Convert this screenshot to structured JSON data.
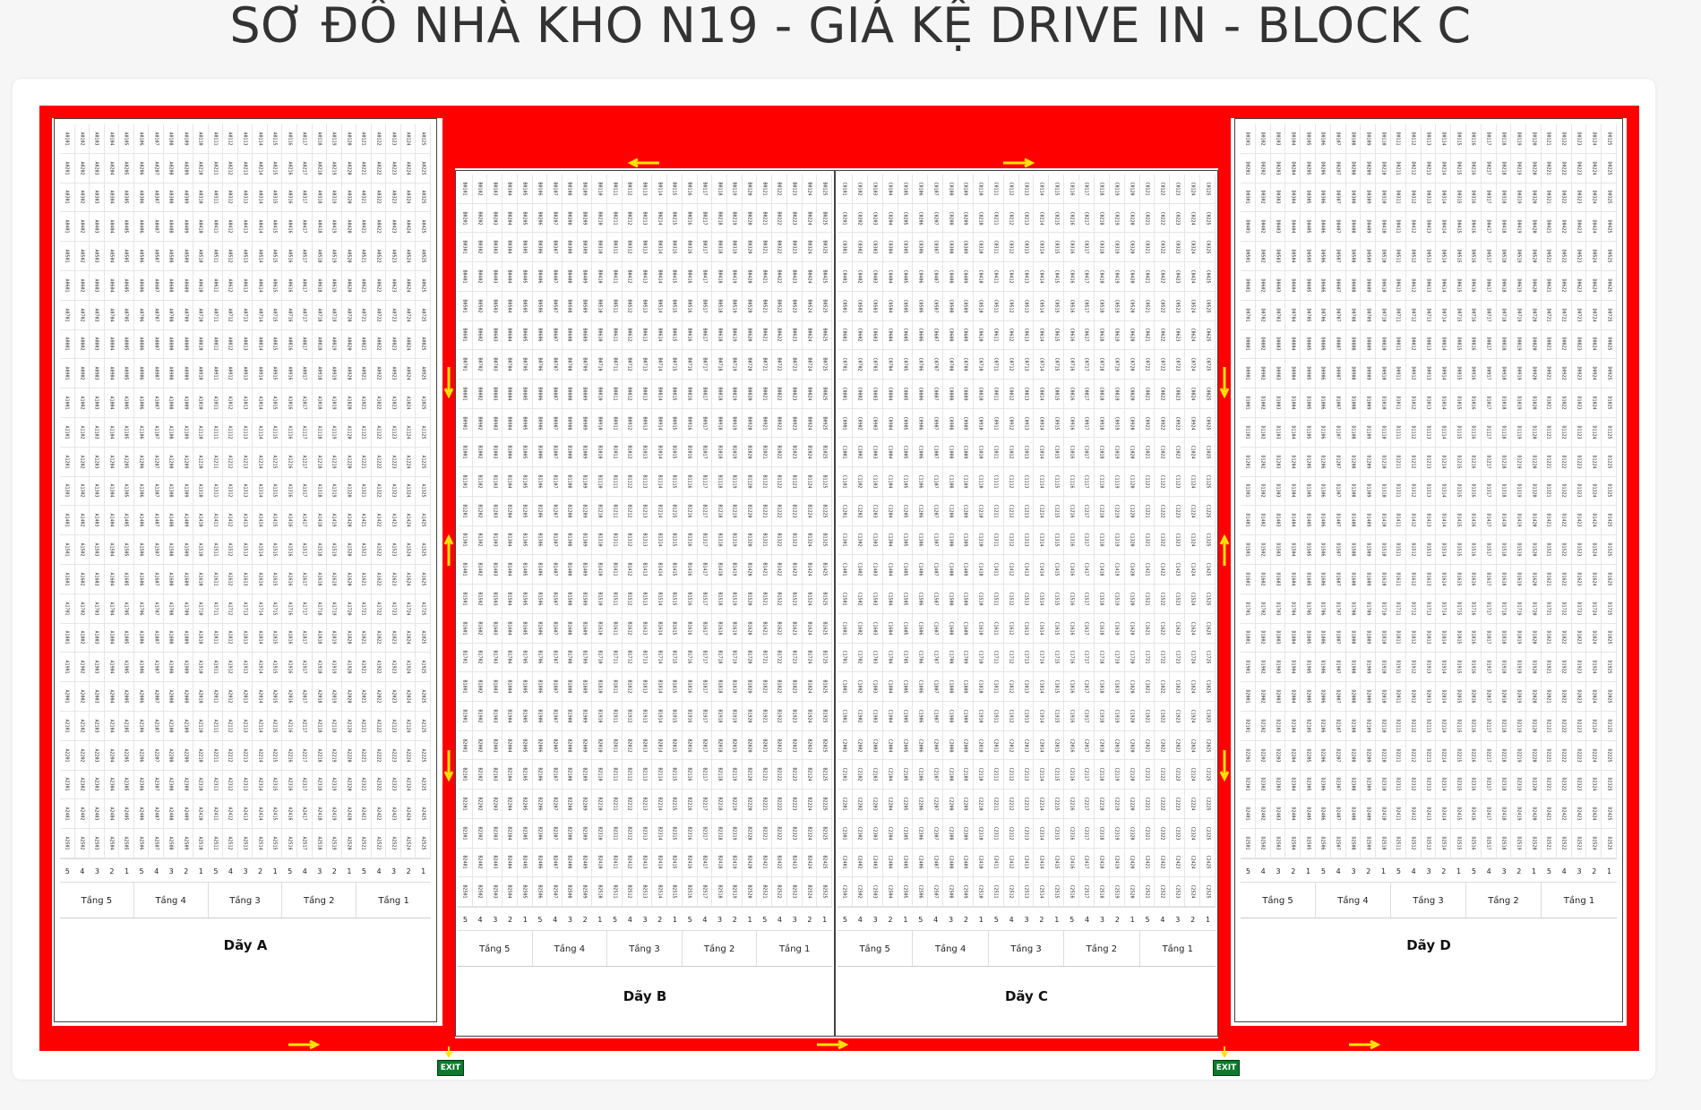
{
  "title": "SƠ ĐỒ NHÀ KHO N19 - GIÁ KỆ DRIVE IN - BLOCK C",
  "colors": {
    "band": "#ff0000",
    "arrow": "#ffe500",
    "exit_bg": "#0a7a2c"
  },
  "exit_label": "EXIT",
  "tier_numbers": [
    "5",
    "4",
    "3",
    "2",
    "1"
  ],
  "levels": [
    "Tầng 5",
    "Tầng 4",
    "Tầng 3",
    "Tầng 2",
    "Tầng 1"
  ],
  "rows": [
    {
      "id": "A",
      "label": "Dãy A"
    },
    {
      "id": "B",
      "label": "Dãy B"
    },
    {
      "id": "C",
      "label": "Dãy C"
    },
    {
      "id": "D",
      "label": "Dãy D"
    }
  ],
  "bays_per_row": 25,
  "positions_per_bay": 25,
  "cell_code_example": "A0101"
}
